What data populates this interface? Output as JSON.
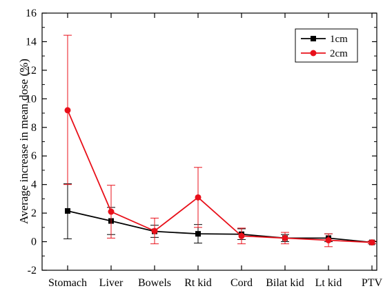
{
  "chart_data": {
    "type": "line",
    "title": "",
    "xlabel": "",
    "ylabel": "Average increase in mean dose (%)",
    "categories": [
      "Stomach",
      "Liver",
      "Bowels",
      "Rt kid",
      "Cord",
      "Bilat kid",
      "Lt kid",
      "PTV"
    ],
    "ylim": [
      -2,
      16
    ],
    "yticks": [
      -2,
      0,
      2,
      4,
      6,
      8,
      10,
      12,
      14,
      16
    ],
    "grid": false,
    "legend_position": "top-right",
    "series": [
      {
        "name": "1cm",
        "color": "#000000",
        "marker": "square",
        "values": [
          2.15,
          1.45,
          0.72,
          0.55,
          0.52,
          0.25,
          0.25,
          -0.05
        ],
        "error_low": [
          0.2,
          0.5,
          0.3,
          -0.1,
          0.15,
          0.0,
          0.0,
          -0.15
        ],
        "error_high": [
          4.05,
          2.4,
          1.15,
          1.2,
          0.9,
          0.5,
          0.55,
          0.05
        ]
      },
      {
        "name": "2cm",
        "color": "#e8101a",
        "marker": "circle",
        "values": [
          9.2,
          2.1,
          0.75,
          3.1,
          0.4,
          0.25,
          0.1,
          -0.05
        ],
        "error_low": [
          4.0,
          0.25,
          -0.15,
          1.0,
          -0.15,
          -0.15,
          -0.35,
          -0.15
        ],
        "error_high": [
          14.45,
          3.95,
          1.65,
          5.2,
          0.95,
          0.65,
          0.55,
          0.05
        ]
      }
    ]
  }
}
